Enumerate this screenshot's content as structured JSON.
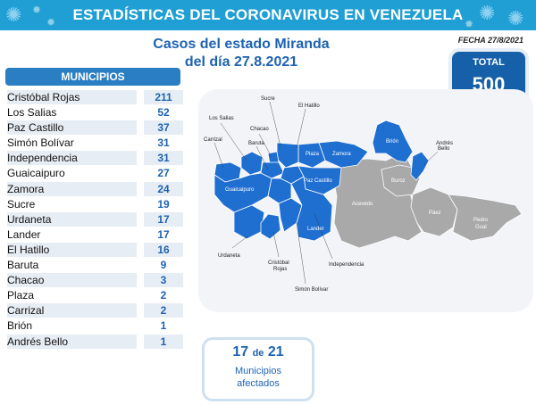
{
  "header": {
    "title": "ESTADÍSTICAS DEL CORONAVIRUS EN VENEZUELA"
  },
  "fecha": "FECHA 27/8/2021",
  "subtitle": {
    "line1": "Casos del estado Miranda",
    "line2": "del día 27.8.2021"
  },
  "total": {
    "label": "TOTAL",
    "value": "500"
  },
  "municipios": {
    "header": "MUNICIPIOS",
    "rows": [
      {
        "name": "Cristóbal Rojas",
        "value": "211"
      },
      {
        "name": "Los Salias",
        "value": "52"
      },
      {
        "name": "Paz Castillo",
        "value": "37"
      },
      {
        "name": "Simón Bolívar",
        "value": "31"
      },
      {
        "name": "Independencia",
        "value": "31"
      },
      {
        "name": "Guaicaipuro",
        "value": "27"
      },
      {
        "name": "Zamora",
        "value": "24"
      },
      {
        "name": "Sucre",
        "value": "19"
      },
      {
        "name": "Urdaneta",
        "value": "17"
      },
      {
        "name": "Lander",
        "value": "17"
      },
      {
        "name": "El Hatillo",
        "value": "16"
      },
      {
        "name": "Baruta",
        "value": "9"
      },
      {
        "name": "Chacao",
        "value": "3"
      },
      {
        "name": "Plaza",
        "value": "2"
      },
      {
        "name": "Carrizal",
        "value": "2"
      },
      {
        "name": "Brión",
        "value": "1"
      },
      {
        "name": "Andrés Bello",
        "value": "1"
      }
    ]
  },
  "map": {
    "colors": {
      "affected": "#1f6fd1",
      "unaffected": "#a9a9a9",
      "shadow": "#e9ecf1"
    },
    "labels": {
      "sucre": "Sucre",
      "el_hatillo": "El Hatillo",
      "los_salias": "Los Salias",
      "chacao": "Chacao",
      "carrizal": "Carrizal",
      "baruta": "Baruta",
      "plaza": "Plaza",
      "zamora": "Zamora",
      "guaicaipuro": "Guaicaipuro",
      "paz_castillo": "Paz Castillo",
      "lander": "Lander",
      "urdaneta": "Urdaneta",
      "cristobal_rojas_1": "Cristóbal",
      "cristobal_rojas_2": "Rojas",
      "simon_bolivar": "Simón Bolívar",
      "independencia": "Independencia",
      "brion": "Brión",
      "andres_bello_1": "Andrés",
      "andres_bello_2": "Bello",
      "buroz": "Buroz",
      "acevedo": "Acevedo",
      "paez": "Páez",
      "pedro_gual_1": "Pedro",
      "pedro_gual_2": "Gual"
    }
  },
  "bottom": {
    "count": "17",
    "de": "de",
    "total": "21",
    "line1": "Municipios",
    "line2": "afectados"
  }
}
